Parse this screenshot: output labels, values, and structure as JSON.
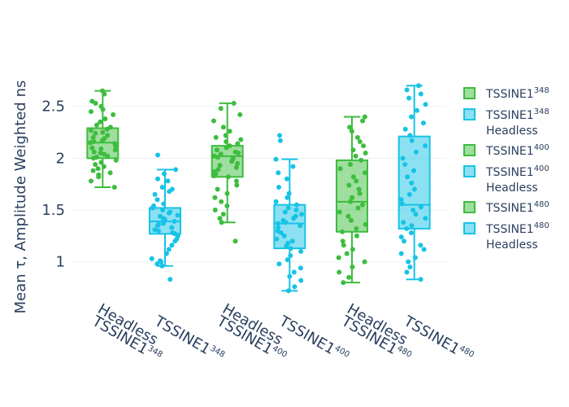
{
  "chart_data": {
    "type": "box",
    "ylabel": "Mean τ, Amplitude Weighted ns",
    "ylim": [
      0.62,
      2.82
    ],
    "yticks": [
      1,
      1.5,
      2,
      2.5
    ],
    "ytick_labels": [
      "1",
      "1.5",
      "2",
      "2.5"
    ],
    "colors": {
      "green": "#3dbd3d",
      "cyan": "#17c3e6"
    },
    "series": [
      {
        "name_base": "TSSINE1",
        "name_sup": "348",
        "name_suffix": "",
        "color_key": "green",
        "stats": {
          "min": 1.72,
          "q1": 2.0,
          "median": 2.15,
          "q3": 2.29,
          "max": 2.65
        },
        "points": [
          2.65,
          2.62,
          2.55,
          2.53,
          2.5,
          2.47,
          2.45,
          2.42,
          2.38,
          2.35,
          2.32,
          2.3,
          2.28,
          2.27,
          2.25,
          2.24,
          2.22,
          2.2,
          2.19,
          2.17,
          2.16,
          2.15,
          2.14,
          2.12,
          2.1,
          2.09,
          2.08,
          2.06,
          2.05,
          2.04,
          2.02,
          2.01,
          2.0,
          1.98,
          1.96,
          1.94,
          1.92,
          1.9,
          1.88,
          1.86,
          1.84,
          1.82,
          1.78,
          1.72
        ]
      },
      {
        "name_base": "TSSINE1",
        "name_sup": "348",
        "name_suffix": "Headless",
        "color_key": "cyan",
        "stats": {
          "min": 0.96,
          "q1": 1.27,
          "median": 1.39,
          "q3": 1.52,
          "max": 1.89
        },
        "points": [
          2.03,
          1.89,
          1.85,
          1.8,
          1.78,
          1.72,
          1.7,
          1.68,
          1.65,
          1.6,
          1.56,
          1.54,
          1.52,
          1.5,
          1.48,
          1.47,
          1.45,
          1.44,
          1.42,
          1.41,
          1.4,
          1.39,
          1.38,
          1.37,
          1.36,
          1.35,
          1.33,
          1.31,
          1.3,
          1.28,
          1.27,
          1.25,
          1.22,
          1.2,
          1.16,
          1.12,
          1.08,
          1.03,
          1.01,
          1.0,
          0.98,
          0.96,
          0.83
        ]
      },
      {
        "name_base": "TSSINE1",
        "name_sup": "400",
        "name_suffix": "",
        "color_key": "green",
        "stats": {
          "min": 1.38,
          "q1": 1.82,
          "median": 2.02,
          "q3": 2.12,
          "max": 2.53
        },
        "points": [
          2.53,
          2.48,
          2.42,
          2.36,
          2.3,
          2.26,
          2.22,
          2.2,
          2.18,
          2.16,
          2.14,
          2.12,
          2.1,
          2.08,
          2.06,
          2.05,
          2.04,
          2.02,
          2.01,
          2.0,
          1.99,
          1.97,
          1.95,
          1.93,
          1.91,
          1.89,
          1.87,
          1.85,
          1.83,
          1.82,
          1.78,
          1.74,
          1.7,
          1.66,
          1.62,
          1.58,
          1.54,
          1.5,
          1.46,
          1.42,
          1.38,
          1.2
        ]
      },
      {
        "name_base": "TSSINE1",
        "name_sup": "400",
        "name_suffix": "Headless",
        "color_key": "cyan",
        "stats": {
          "min": 0.72,
          "q1": 1.13,
          "median": 1.37,
          "q3": 1.55,
          "max": 1.99
        },
        "points": [
          2.22,
          2.17,
          1.99,
          1.92,
          1.86,
          1.8,
          1.72,
          1.66,
          1.62,
          1.58,
          1.55,
          1.52,
          1.5,
          1.48,
          1.46,
          1.44,
          1.42,
          1.4,
          1.38,
          1.37,
          1.35,
          1.33,
          1.3,
          1.28,
          1.25,
          1.22,
          1.2,
          1.18,
          1.15,
          1.13,
          1.1,
          1.06,
          1.02,
          0.98,
          0.94,
          0.9,
          0.86,
          0.82,
          0.76,
          0.72
        ]
      },
      {
        "name_base": "TSSINE1",
        "name_sup": "480",
        "name_suffix": "",
        "color_key": "green",
        "stats": {
          "min": 0.8,
          "q1": 1.29,
          "median": 1.58,
          "q3": 1.98,
          "max": 2.4
        },
        "points": [
          2.4,
          2.36,
          2.3,
          2.26,
          2.2,
          2.16,
          2.12,
          2.08,
          2.05,
          2.02,
          1.98,
          1.94,
          1.9,
          1.86,
          1.82,
          1.78,
          1.74,
          1.7,
          1.66,
          1.62,
          1.58,
          1.55,
          1.52,
          1.48,
          1.44,
          1.4,
          1.36,
          1.32,
          1.29,
          1.25,
          1.2,
          1.16,
          1.12,
          1.08,
          1.04,
          1.0,
          0.95,
          0.9,
          0.85,
          0.8
        ]
      },
      {
        "name_base": "TSSINE1",
        "name_sup": "480",
        "name_suffix": "Headless",
        "color_key": "cyan",
        "stats": {
          "min": 0.83,
          "q1": 1.32,
          "median": 1.55,
          "q3": 2.21,
          "max": 2.7
        },
        "points": [
          2.7,
          2.66,
          2.62,
          2.58,
          2.52,
          2.46,
          2.4,
          2.34,
          2.28,
          2.22,
          2.17,
          2.12,
          2.06,
          2.0,
          1.94,
          1.88,
          1.82,
          1.76,
          1.7,
          1.65,
          1.6,
          1.56,
          1.53,
          1.5,
          1.46,
          1.42,
          1.38,
          1.35,
          1.32,
          1.28,
          1.24,
          1.2,
          1.16,
          1.12,
          1.08,
          1.04,
          1.0,
          0.95,
          0.9,
          0.83
        ]
      }
    ]
  }
}
